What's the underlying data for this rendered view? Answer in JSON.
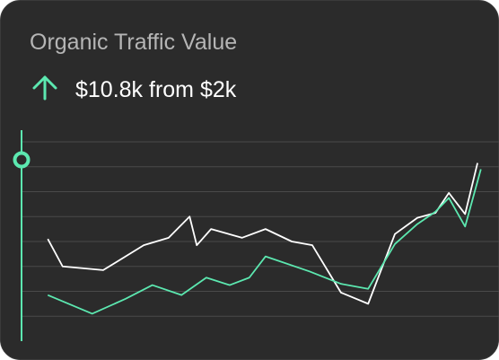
{
  "chart_data": {
    "type": "line",
    "title": "Organic Traffic Value",
    "subtitle": "$10.8k from $2k",
    "xlim": [
      0,
      100
    ],
    "ylim": [
      0,
      8
    ],
    "yticks": [
      1,
      2,
      3,
      4,
      5,
      6,
      7,
      8
    ],
    "grid": true,
    "series": [
      {
        "color": "#ffffff",
        "x": [
          5.5,
          8.6,
          17.1,
          25.6,
          30.8,
          35.2,
          36.7,
          39.7,
          46.2,
          51.1,
          56.6,
          60.9,
          66.9,
          72.6,
          78.2,
          82.9,
          86.7,
          89.5,
          92.9,
          95.5
        ],
        "values": [
          4.1,
          3.0,
          2.85,
          3.85,
          4.15,
          5.0,
          3.85,
          4.5,
          4.15,
          4.5,
          4.0,
          3.85,
          1.95,
          1.5,
          4.3,
          4.95,
          5.15,
          5.95,
          5.1,
          7.15
        ]
      },
      {
        "color": "#5ce8b0",
        "x": [
          5.5,
          14.8,
          21.8,
          27.4,
          33.5,
          38.7,
          43.6,
          47.7,
          51.1,
          60.3,
          66.9,
          72.6,
          78.2,
          82.9,
          86.7,
          89.5,
          92.9,
          96.2
        ],
        "values": [
          1.85,
          1.1,
          1.7,
          2.25,
          1.85,
          2.55,
          2.25,
          2.55,
          3.4,
          2.8,
          2.3,
          2.1,
          3.9,
          4.7,
          5.2,
          5.75,
          4.6,
          6.9
        ]
      }
    ]
  }
}
